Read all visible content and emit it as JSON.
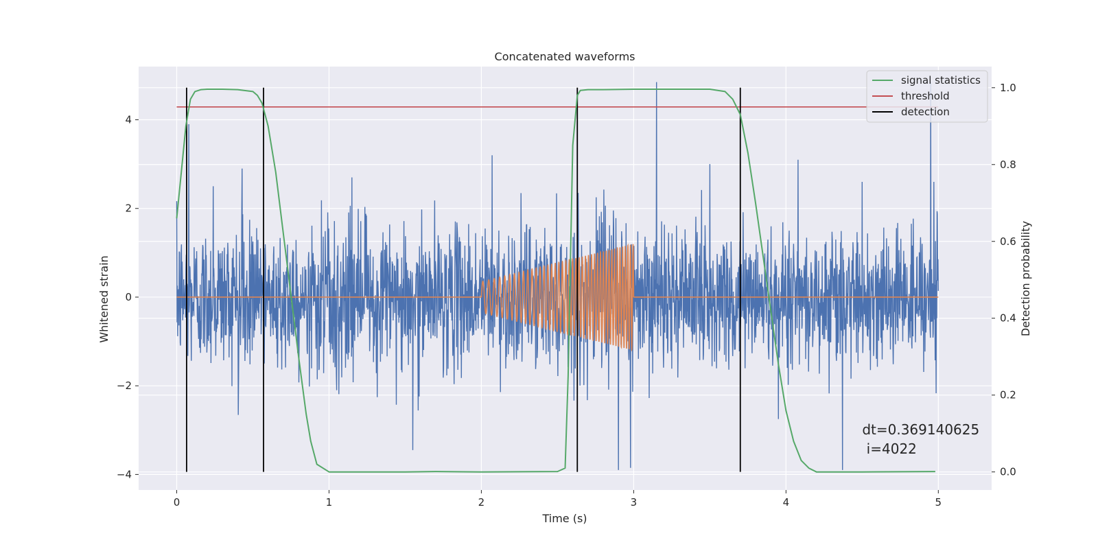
{
  "chart_data": {
    "type": "line",
    "title": "Concatenated waveforms",
    "xlabel": "Time (s)",
    "ylabel": "Whitened strain",
    "y2label": "Detection probability",
    "xlim": [
      -0.25,
      5.35
    ],
    "ylim": [
      -4.35,
      5.2
    ],
    "y2lim": [
      -0.047,
      1.055
    ],
    "x_ticks": [
      0,
      1,
      2,
      3,
      4,
      5
    ],
    "x_tick_labels": [
      "0",
      "1",
      "2",
      "3",
      "4",
      "5"
    ],
    "y_ticks": [
      -4,
      -2,
      0,
      2,
      4
    ],
    "y_tick_labels": [
      "−4",
      "−2",
      "0",
      "2",
      "4"
    ],
    "y2_ticks": [
      0.0,
      0.2,
      0.4,
      0.6,
      0.8,
      1.0
    ],
    "y2_tick_labels": [
      "0.0",
      "0.2",
      "0.4",
      "0.6",
      "0.8",
      "1.0"
    ],
    "grid": true,
    "legend_position": "top-right",
    "series": [
      {
        "name": "",
        "kind": "noise",
        "axis": "left",
        "color": "#4c72b0",
        "x_range": [
          0,
          5
        ],
        "typical_amplitude": 1.6,
        "peaks": [
          [
            0.08,
            3.9
          ],
          [
            0.24,
            2.5
          ],
          [
            0.43,
            2.9
          ],
          [
            1.15,
            2.7
          ],
          [
            1.55,
            -3.45
          ],
          [
            2.07,
            3.2
          ],
          [
            2.9,
            -3.9
          ],
          [
            2.98,
            -3.85
          ],
          [
            3.15,
            4.85
          ],
          [
            3.5,
            3.0
          ],
          [
            3.95,
            -2.75
          ],
          [
            4.08,
            3.1
          ],
          [
            4.37,
            -3.9
          ],
          [
            4.5,
            2.6
          ],
          [
            4.95,
            4.85
          ],
          [
            4.97,
            2.6
          ]
        ]
      },
      {
        "name": "",
        "kind": "chirp",
        "axis": "left",
        "color": "#dd8452",
        "x": [
          0,
          2,
          2.0,
          3.0,
          3.0,
          5
        ],
        "y": [
          0,
          0,
          0.35,
          1.2,
          0,
          0
        ],
        "chirp_start_hz": 25,
        "chirp_end_hz": 60
      },
      {
        "name": "signal statistics",
        "kind": "line",
        "axis": "right",
        "color": "#55a868",
        "x": [
          0,
          0.03,
          0.06,
          0.09,
          0.12,
          0.16,
          0.2,
          0.3,
          0.4,
          0.5,
          0.53,
          0.56,
          0.6,
          0.65,
          0.7,
          0.75,
          0.8,
          0.85,
          0.88,
          0.92,
          1.0,
          1.5,
          1.7,
          2.0,
          2.5,
          2.55,
          2.57,
          2.6,
          2.63,
          2.65,
          2.7,
          2.8,
          3.0,
          3.5,
          3.6,
          3.65,
          3.7,
          3.75,
          3.8,
          3.85,
          3.9,
          3.95,
          4.0,
          4.05,
          4.1,
          4.15,
          4.2,
          4.5,
          4.98
        ],
        "y": [
          0.66,
          0.78,
          0.9,
          0.97,
          0.99,
          0.995,
          0.996,
          0.996,
          0.995,
          0.99,
          0.98,
          0.96,
          0.9,
          0.78,
          0.62,
          0.46,
          0.3,
          0.15,
          0.08,
          0.02,
          0.0,
          0.0,
          0.001,
          0.0,
          0.001,
          0.01,
          0.25,
          0.85,
          0.98,
          0.993,
          0.995,
          0.995,
          0.996,
          0.996,
          0.99,
          0.97,
          0.93,
          0.83,
          0.7,
          0.56,
          0.42,
          0.28,
          0.16,
          0.08,
          0.03,
          0.01,
          0.0,
          0.0,
          0.001
        ]
      },
      {
        "name": "threshold",
        "kind": "hline",
        "axis": "right",
        "color": "#c44e52",
        "x": [
          0,
          5
        ],
        "y": [
          0.95,
          0.95
        ]
      },
      {
        "name": "detection",
        "kind": "vlines",
        "axis": "right",
        "color": "#000000",
        "x": [
          0.065,
          0.57,
          2.63,
          3.7
        ],
        "ymin": 0.0,
        "ymax": 1.0
      }
    ],
    "annotation": {
      "line1": "dt=0.369140625",
      "line2": " i=4022",
      "x": 4.5,
      "y": -3.1
    }
  }
}
